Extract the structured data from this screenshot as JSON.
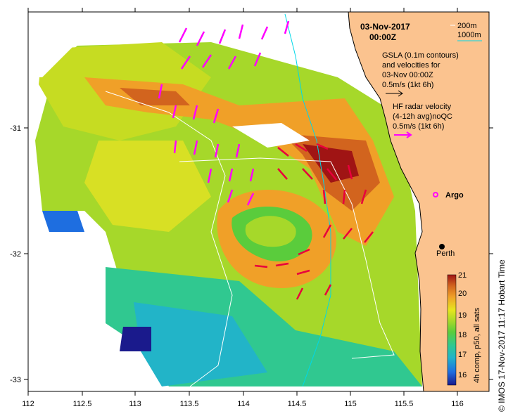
{
  "header": {
    "date": "03-Nov-2017",
    "time": "00:00Z"
  },
  "legend": {
    "depth_200": "200m",
    "depth_1000": "1000m",
    "gsla_line1": "GSLA (0.1m contours)",
    "gsla_line2": "and velocities for",
    "gsla_line3": "03-Nov 00:00Z",
    "gsla_scale": "0.5m/s (1kt 6h)",
    "hf_line1": "HF radar velocity",
    "hf_line2": "(4-12h avg)noQC",
    "hf_scale": "0.5m/s (1kt 6h)"
  },
  "places": {
    "argo": "Argo",
    "perth": "Perth"
  },
  "axes": {
    "x_ticks": [
      "112",
      "112.5",
      "113",
      "113.5",
      "114",
      "114.5",
      "115",
      "115.5",
      "116"
    ],
    "y_ticks": [
      "-31",
      "-32",
      "-33"
    ]
  },
  "colorbar": {
    "ticks": [
      "21",
      "20",
      "19",
      "18",
      "17",
      "16"
    ],
    "label": "4h comp, p50, all sats",
    "colors": [
      "#1a1a8c",
      "#1e6ee0",
      "#22b4c8",
      "#30c890",
      "#5acc3c",
      "#a6d82a",
      "#e6e61e",
      "#f0a028",
      "#d2641e",
      "#a01414"
    ]
  },
  "credit": "© IMOS 17-Nov-2017 11:17 Hobart Time",
  "colors": {
    "land": "#fbc38f",
    "radar_arrow": "#ff00ff",
    "gsla_arrow": "#e8003c",
    "contour_200": "#ffffff",
    "contour_1000": "#00d8e8"
  }
}
